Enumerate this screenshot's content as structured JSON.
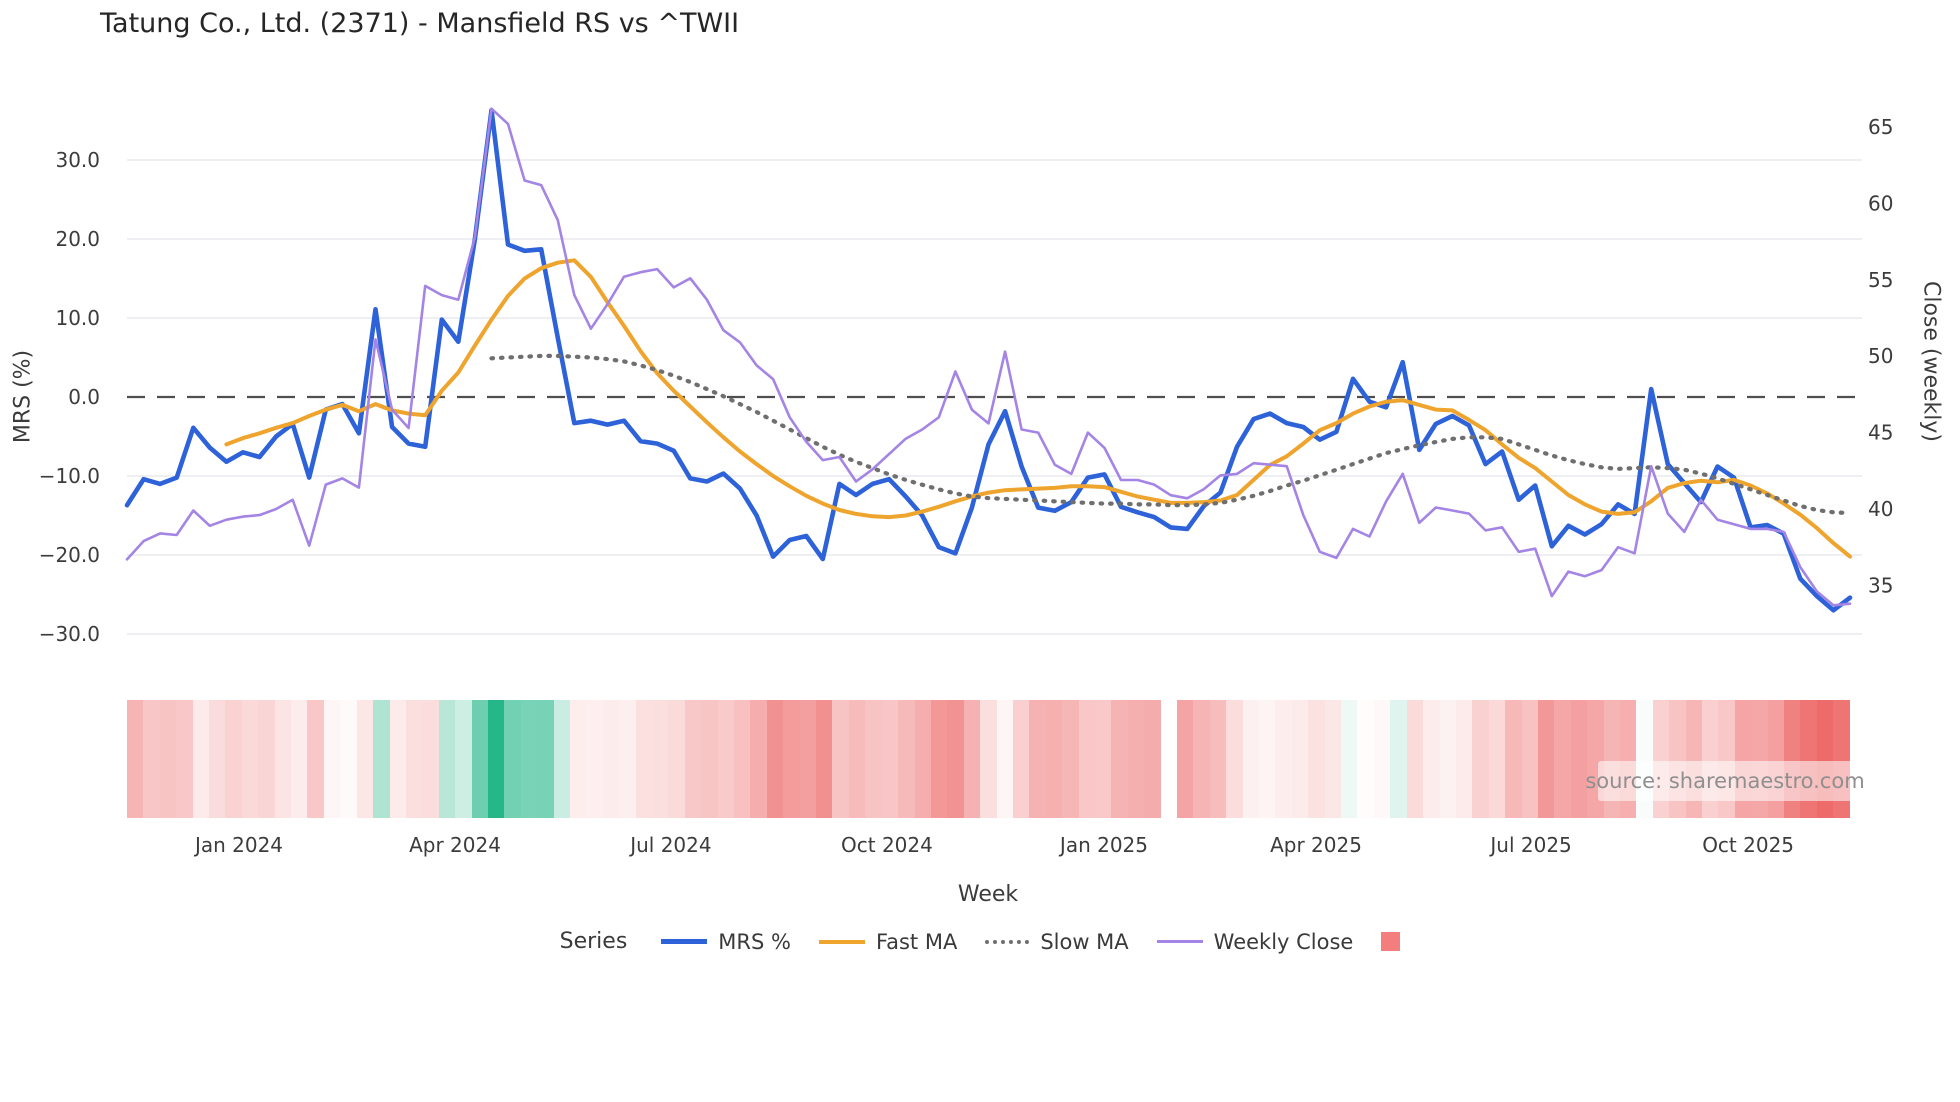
{
  "title": "Tatung Co., Ltd. (2371) - Mansfield RS vs ^TWII",
  "watermark": "source: sharemaestro.com",
  "axes": {
    "left_title": "MRS (%)",
    "right_title": "Close (weekly)",
    "x_title": "Week",
    "left_tick_labels": [
      "30.0",
      "20.0",
      "10.0",
      "0.0",
      "−10.0",
      "−20.0",
      "−30.0"
    ],
    "left_tick_values": [
      30,
      20,
      10,
      0,
      -10,
      -20,
      -30
    ],
    "right_tick_labels": [
      "65",
      "60",
      "55",
      "50",
      "45",
      "40",
      "35"
    ],
    "right_tick_values": [
      65,
      60,
      55,
      50,
      45,
      40,
      35
    ],
    "x_tick_labels": [
      "Jan 2024",
      "Apr 2024",
      "Jul 2024",
      "Oct 2024",
      "Jan 2025",
      "Apr 2025",
      "Jul 2025",
      "Oct 2025"
    ],
    "x_tick_weeks": [
      6.76,
      19.8,
      32.83,
      45.87,
      58.97,
      71.77,
      84.75,
      97.85
    ]
  },
  "legend": {
    "series_label": "Series",
    "items": [
      {
        "label": "MRS %",
        "color": "#2d62d8",
        "style": "solid"
      },
      {
        "label": "Fast MA",
        "color": "#eea42d",
        "style": "solid"
      },
      {
        "label": "Slow MA",
        "color": "#6f6f6f",
        "style": "dotted"
      },
      {
        "label": "Weekly Close",
        "color": "#a484e4",
        "style": "solid"
      }
    ],
    "heatmap_swatch_color": "#f47d7d"
  },
  "chart_data": {
    "type": "line",
    "title": "Tatung Co., Ltd. (2371) - Mansfield RS vs ^TWII",
    "xlabel": "Week",
    "ylabel_left": "MRS (%)",
    "ylabel_right": "Close (weekly)",
    "x_range": "105 weekly points, mid-Nov 2023 to mid-Nov 2025",
    "ylim_left": [
      -33,
      40
    ],
    "ylim_right": [
      30,
      68
    ],
    "grid": "horizontal only, zero line dashed",
    "legend_position": "bottom",
    "weeks": 105,
    "series": [
      {
        "name": "MRS %",
        "axis": "left",
        "color": "#2d62d8",
        "width": 4.6,
        "dash": null,
        "values": [
          -13.7,
          -10.4,
          -11.0,
          -10.2,
          -3.9,
          -6.4,
          -8.2,
          -7.0,
          -7.6,
          -5.0,
          -3.4,
          -10.2,
          -1.6,
          -0.9,
          -4.6,
          11.1,
          -3.8,
          -5.9,
          -6.3,
          9.8,
          7.0,
          20.0,
          36.3,
          19.3,
          18.5,
          18.7,
          7.5,
          -3.3,
          -3.0,
          -3.5,
          -3.0,
          -5.6,
          -5.9,
          -6.8,
          -10.3,
          -10.7,
          -9.7,
          -11.6,
          -15.0,
          -20.2,
          -18.1,
          -17.6,
          -20.5,
          -11.0,
          -12.4,
          -11.0,
          -10.4,
          -12.6,
          -15.0,
          -19.0,
          -19.8,
          -14.0,
          -6.0,
          -1.8,
          -8.8,
          -14.0,
          -14.4,
          -13.3,
          -10.2,
          -9.8,
          -13.9,
          -14.6,
          -15.2,
          -16.5,
          -16.7,
          -13.8,
          -12.1,
          -6.3,
          -2.8,
          -2.1,
          -3.3,
          -3.8,
          -5.4,
          -4.4,
          2.3,
          -0.6,
          -1.3,
          4.4,
          -6.7,
          -3.4,
          -2.4,
          -3.6,
          -8.5,
          -6.9,
          -13.0,
          -11.2,
          -18.9,
          -16.3,
          -17.4,
          -16.1,
          -13.6,
          -14.8,
          1.0,
          -8.5,
          -10.9,
          -13.3,
          -8.8,
          -10.2,
          -16.5,
          -16.2,
          -17.3,
          -23.0,
          -25.2,
          -27.0,
          -25.4
        ]
      },
      {
        "name": "Fast MA",
        "axis": "left",
        "color": "#eea42d",
        "width": 4.0,
        "dash": null,
        "values": [
          null,
          null,
          null,
          null,
          null,
          null,
          -6.0,
          -5.2,
          -4.6,
          -3.9,
          -3.3,
          -2.4,
          -1.6,
          -1.0,
          -1.8,
          -0.9,
          -1.7,
          -2.1,
          -2.3,
          0.8,
          3.1,
          6.5,
          9.8,
          12.8,
          15.0,
          16.3,
          17.0,
          17.3,
          15.2,
          12.0,
          9.0,
          5.8,
          3.0,
          0.8,
          -1.2,
          -3.2,
          -5.1,
          -6.9,
          -8.5,
          -10.0,
          -11.3,
          -12.5,
          -13.5,
          -14.3,
          -14.8,
          -15.1,
          -15.2,
          -15.0,
          -14.5,
          -13.9,
          -13.2,
          -12.6,
          -12.1,
          -11.8,
          -11.7,
          -11.6,
          -11.5,
          -11.3,
          -11.3,
          -11.4,
          -12.0,
          -12.6,
          -13.0,
          -13.4,
          -13.4,
          -13.3,
          -13.1,
          -12.4,
          -10.5,
          -8.6,
          -7.5,
          -5.9,
          -4.2,
          -3.3,
          -2.1,
          -1.2,
          -0.6,
          -0.4,
          -1.0,
          -1.6,
          -1.7,
          -2.9,
          -4.2,
          -6.0,
          -7.7,
          -9.0,
          -10.7,
          -12.4,
          -13.6,
          -14.5,
          -14.8,
          -14.6,
          -13.2,
          -11.5,
          -10.9,
          -10.6,
          -10.8,
          -10.5,
          -11.2,
          -12.2,
          -13.5,
          -14.9,
          -16.6,
          -18.5,
          -20.2
        ]
      },
      {
        "name": "Slow MA",
        "axis": "left",
        "color": "#6f6f6f",
        "width": 4.2,
        "dash": "dotted",
        "values": [
          null,
          null,
          null,
          null,
          null,
          null,
          null,
          null,
          null,
          null,
          null,
          null,
          null,
          null,
          null,
          null,
          null,
          null,
          null,
          null,
          null,
          null,
          4.9,
          5.0,
          5.1,
          5.2,
          5.2,
          5.1,
          5.0,
          4.8,
          4.5,
          4.0,
          3.4,
          2.7,
          1.9,
          1.0,
          0.1,
          -0.9,
          -1.9,
          -3.0,
          -4.1,
          -5.2,
          -6.3,
          -7.3,
          -8.2,
          -9.0,
          -9.8,
          -10.5,
          -11.1,
          -11.7,
          -12.2,
          -12.6,
          -12.8,
          -12.9,
          -13.0,
          -13.1,
          -13.2,
          -13.3,
          -13.4,
          -13.5,
          -13.5,
          -13.6,
          -13.6,
          -13.7,
          -13.7,
          -13.6,
          -13.4,
          -13.0,
          -12.5,
          -11.9,
          -11.2,
          -10.6,
          -9.9,
          -9.2,
          -8.5,
          -7.8,
          -7.1,
          -6.6,
          -6.1,
          -5.7,
          -5.3,
          -5.1,
          -5.1,
          -5.3,
          -6.0,
          -6.7,
          -7.4,
          -8.0,
          -8.5,
          -8.9,
          -9.1,
          -9.0,
          -8.9,
          -9.0,
          -9.2,
          -9.7,
          -10.3,
          -11.0,
          -11.7,
          -12.4,
          -13.1,
          -13.8,
          -14.3,
          -14.6,
          -14.7
        ]
      },
      {
        "name": "Weekly Close",
        "axis": "right",
        "color": "#a484e4",
        "width": 2.6,
        "dash": null,
        "values": [
          36.7,
          37.9,
          38.4,
          38.3,
          39.9,
          38.9,
          39.3,
          39.5,
          39.6,
          40.0,
          40.6,
          37.6,
          41.6,
          42.0,
          41.4,
          51.1,
          46.5,
          45.3,
          54.6,
          54.0,
          53.7,
          57.8,
          66.2,
          65.2,
          61.5,
          61.2,
          58.9,
          54.0,
          51.8,
          53.4,
          55.2,
          55.5,
          55.7,
          54.5,
          55.1,
          53.7,
          51.7,
          50.9,
          49.4,
          48.5,
          46.0,
          44.4,
          43.2,
          43.4,
          41.8,
          42.6,
          43.6,
          44.6,
          45.2,
          46.0,
          49.0,
          46.5,
          45.6,
          50.3,
          45.2,
          45.0,
          42.9,
          42.3,
          45.0,
          44.0,
          41.9,
          41.9,
          41.6,
          40.9,
          40.7,
          41.3,
          42.2,
          42.3,
          43.0,
          42.9,
          42.8,
          39.6,
          37.2,
          36.8,
          38.7,
          38.2,
          40.5,
          42.3,
          39.1,
          40.1,
          39.9,
          39.7,
          38.6,
          38.8,
          37.2,
          37.4,
          34.3,
          35.9,
          35.6,
          36.0,
          37.5,
          37.1,
          42.8,
          39.7,
          38.5,
          40.6,
          39.3,
          39.0,
          38.7,
          38.7,
          38.5,
          36.2,
          34.6,
          33.7,
          33.8
        ]
      }
    ],
    "heatmap_strip": {
      "based_on": "MRS % value per week",
      "gap_weeks": [
        63
      ],
      "max_abs": 30,
      "positive_color": "#26b789",
      "negative_color": "#ec5b5b"
    }
  }
}
